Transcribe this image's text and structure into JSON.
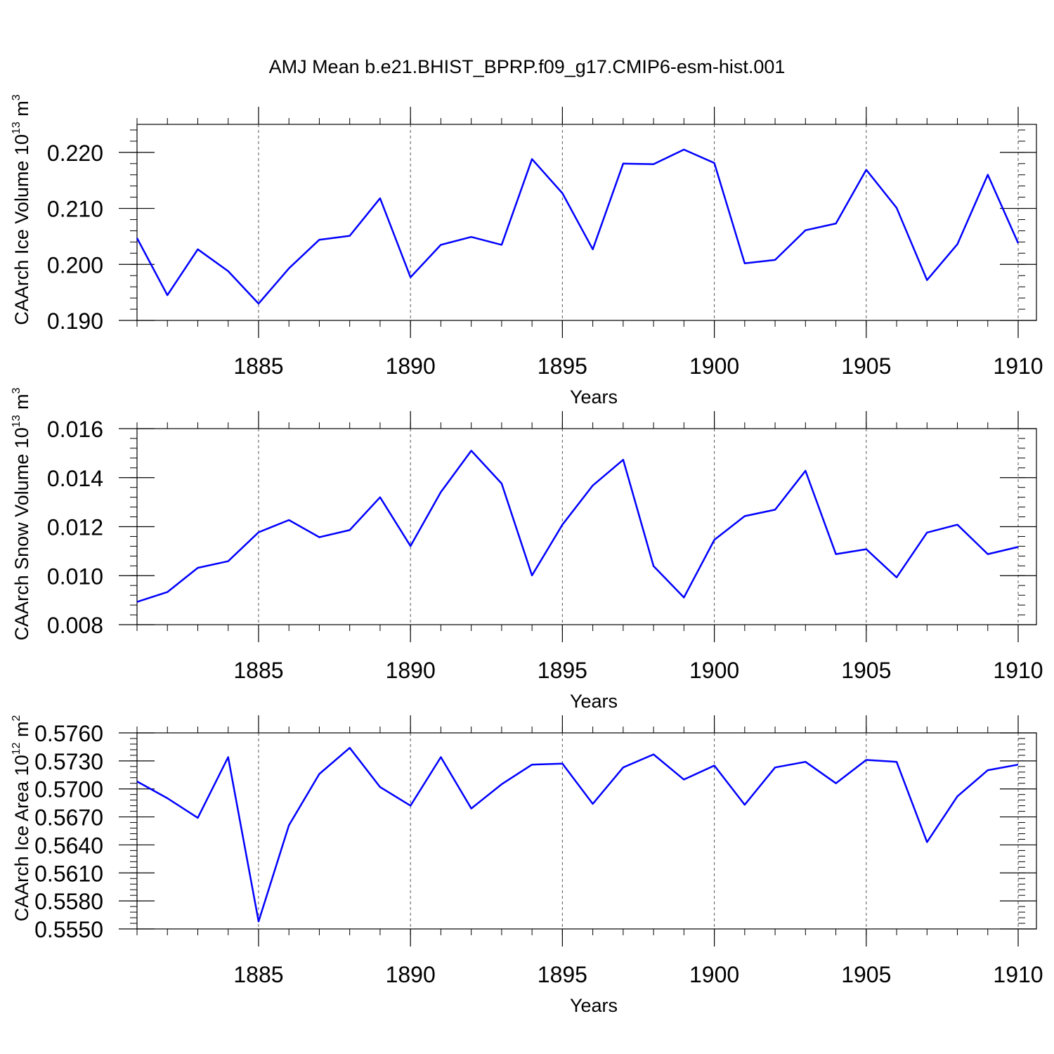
{
  "title": "AMJ Mean b.e21.BHIST_BPRP.f09_g17.CMIP6-esm-hist.001",
  "chart_data": [
    {
      "type": "line",
      "title": "",
      "xlabel": "Years",
      "ylabel": "CAArch Ice Volume 10",
      "ylabel_exp": "13",
      "ylabel_unit": " m",
      "ylabel_unit_exp": "3",
      "xlim": [
        1881,
        1910
      ],
      "ylim": [
        0.19,
        0.225
      ],
      "xticks": [
        "1885",
        "1890",
        "1895",
        "1900",
        "1905",
        "1910"
      ],
      "yticks": [
        "0.190",
        "0.200",
        "0.210",
        "0.220"
      ],
      "color": "#0000ff",
      "grid": "vertical dashed",
      "x": [
        1881,
        1882,
        1883,
        1884,
        1885,
        1886,
        1887,
        1888,
        1889,
        1890,
        1891,
        1892,
        1893,
        1894,
        1895,
        1896,
        1897,
        1898,
        1899,
        1900,
        1901,
        1902,
        1903,
        1904,
        1905,
        1906,
        1907,
        1908,
        1909,
        1910
      ],
      "values": [
        0.2047,
        0.1945,
        0.2027,
        0.1988,
        0.193,
        0.1993,
        0.2044,
        0.2051,
        0.2118,
        0.1977,
        0.2035,
        0.2049,
        0.2035,
        0.2188,
        0.2127,
        0.2027,
        0.218,
        0.2179,
        0.2205,
        0.2181,
        0.2002,
        0.2008,
        0.2061,
        0.2073,
        0.2169,
        0.2101,
        0.1972,
        0.2036,
        0.216,
        0.2038
      ]
    },
    {
      "type": "line",
      "title": "",
      "xlabel": "Years",
      "ylabel": "CAArch Snow Volume 10",
      "ylabel_exp": "13",
      "ylabel_unit": " m",
      "ylabel_unit_exp": "3",
      "xlim": [
        1881,
        1910
      ],
      "ylim": [
        0.008,
        0.016
      ],
      "xticks": [
        "1885",
        "1890",
        "1895",
        "1900",
        "1905",
        "1910"
      ],
      "yticks": [
        "0.008",
        "0.010",
        "0.012",
        "0.014",
        "0.016"
      ],
      "color": "#0000ff",
      "grid": "vertical dashed",
      "x": [
        1881,
        1882,
        1883,
        1884,
        1885,
        1886,
        1887,
        1888,
        1889,
        1890,
        1891,
        1892,
        1893,
        1894,
        1895,
        1896,
        1897,
        1898,
        1899,
        1900,
        1901,
        1902,
        1903,
        1904,
        1905,
        1906,
        1907,
        1908,
        1909,
        1910
      ],
      "values": [
        0.00893,
        0.00933,
        0.01032,
        0.01059,
        0.01177,
        0.01227,
        0.01157,
        0.01186,
        0.0132,
        0.01121,
        0.01341,
        0.0151,
        0.01376,
        0.01001,
        0.01208,
        0.01368,
        0.01473,
        0.01039,
        0.00911,
        0.01146,
        0.01243,
        0.01269,
        0.01428,
        0.01088,
        0.01108,
        0.00993,
        0.01176,
        0.01208,
        0.01088,
        0.01117
      ]
    },
    {
      "type": "line",
      "title": "",
      "xlabel": "Years",
      "ylabel": "CAArch Ice Area 10",
      "ylabel_exp": "12",
      "ylabel_unit": " m",
      "ylabel_unit_exp": "2",
      "xlim": [
        1881,
        1910
      ],
      "ylim": [
        0.555,
        0.576
      ],
      "xticks": [
        "1885",
        "1890",
        "1895",
        "1900",
        "1905",
        "1910"
      ],
      "yticks": [
        "0.5550",
        "0.5580",
        "0.5610",
        "0.5640",
        "0.5670",
        "0.5700",
        "0.5730",
        "0.5760"
      ],
      "color": "#0000ff",
      "grid": "vertical dashed",
      "x": [
        1881,
        1882,
        1883,
        1884,
        1885,
        1886,
        1887,
        1888,
        1889,
        1890,
        1891,
        1892,
        1893,
        1894,
        1895,
        1896,
        1897,
        1898,
        1899,
        1900,
        1901,
        1902,
        1903,
        1904,
        1905,
        1906,
        1907,
        1908,
        1909,
        1910
      ],
      "values": [
        0.5708,
        0.569,
        0.5669,
        0.5734,
        0.5558,
        0.5661,
        0.5716,
        0.5744,
        0.5702,
        0.5682,
        0.5734,
        0.5679,
        0.5705,
        0.5726,
        0.5727,
        0.5684,
        0.5723,
        0.5737,
        0.571,
        0.5725,
        0.5683,
        0.5723,
        0.5729,
        0.5706,
        0.5731,
        0.5729,
        0.5643,
        0.5692,
        0.572,
        0.5726
      ]
    }
  ]
}
